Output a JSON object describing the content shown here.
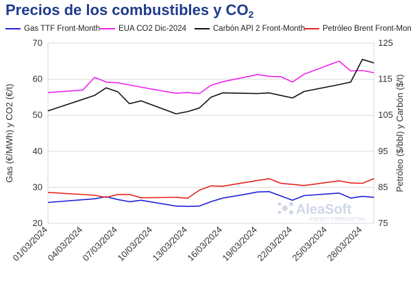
{
  "title_main": "Precios de los combustibles y CO",
  "title_sub": "2",
  "chart_data": {
    "type": "line",
    "xlabel": "",
    "ylabel_left": "Gas (€/MWh) y CO2 (€/t)",
    "ylabel_right": "Petróleo ($/bbl) y Carbón ($/t)",
    "ylim_left": [
      20,
      70
    ],
    "ylim_right": [
      75,
      125
    ],
    "yticks_left": [
      20,
      30,
      40,
      50,
      60,
      70
    ],
    "yticks_right": [
      75,
      85,
      95,
      105,
      115,
      125
    ],
    "x_range": [
      "2024-03-01",
      "2024-03-28"
    ],
    "x_ticks": [
      "01/03/2024",
      "04/03/2024",
      "07/03/2024",
      "10/03/2024",
      "13/03/2024",
      "16/03/2024",
      "19/03/2024",
      "22/03/2024",
      "25/03/2024",
      "28/03/2024"
    ],
    "grid": "horizontal",
    "legend": "top",
    "series": [
      {
        "name": "Gas TTF Front-Month",
        "axis": "left",
        "color": "#1f1fd6",
        "points": [
          [
            "2024-03-01",
            25.8
          ],
          [
            "2024-03-05",
            26.8
          ],
          [
            "2024-03-06",
            27.4
          ],
          [
            "2024-03-07",
            26.6
          ],
          [
            "2024-03-08",
            26.0
          ],
          [
            "2024-03-09",
            26.4
          ],
          [
            "2024-03-12",
            24.8
          ],
          [
            "2024-03-13",
            24.7
          ],
          [
            "2024-03-14",
            24.8
          ],
          [
            "2024-03-15",
            26.0
          ],
          [
            "2024-03-16",
            27.0
          ],
          [
            "2024-03-18",
            28.1
          ],
          [
            "2024-03-19",
            28.7
          ],
          [
            "2024-03-20",
            28.8
          ],
          [
            "2024-03-21",
            27.6
          ],
          [
            "2024-03-22",
            26.4
          ],
          [
            "2024-03-23",
            27.7
          ],
          [
            "2024-03-26",
            28.4
          ],
          [
            "2024-03-27",
            27.0
          ],
          [
            "2024-03-28",
            27.5
          ],
          [
            "2024-03-29",
            27.2
          ]
        ]
      },
      {
        "name": "EUA CO2 Dic-2024",
        "axis": "left",
        "color": "#ee22ee",
        "points": [
          [
            "2024-03-01",
            56.3
          ],
          [
            "2024-03-04",
            57.0
          ],
          [
            "2024-03-05",
            60.5
          ],
          [
            "2024-03-06",
            59.2
          ],
          [
            "2024-03-07",
            59.0
          ],
          [
            "2024-03-10",
            57.2
          ],
          [
            "2024-03-12",
            56.1
          ],
          [
            "2024-03-13",
            56.3
          ],
          [
            "2024-03-14",
            56.0
          ],
          [
            "2024-03-15",
            58.3
          ],
          [
            "2024-03-16",
            59.3
          ],
          [
            "2024-03-19",
            61.3
          ],
          [
            "2024-03-20",
            60.8
          ],
          [
            "2024-03-21",
            60.7
          ],
          [
            "2024-03-22",
            59.2
          ],
          [
            "2024-03-23",
            61.4
          ],
          [
            "2024-03-26",
            65.0
          ],
          [
            "2024-03-27",
            62.3
          ],
          [
            "2024-03-28",
            62.4
          ],
          [
            "2024-03-29",
            61.8
          ]
        ]
      },
      {
        "name": "Carbón API 2 Front-Month",
        "axis": "right",
        "color": "#111111",
        "points": [
          [
            "2024-03-01",
            106.2
          ],
          [
            "2024-03-05",
            110.5
          ],
          [
            "2024-03-06",
            112.6
          ],
          [
            "2024-03-07",
            111.5
          ],
          [
            "2024-03-08",
            108.2
          ],
          [
            "2024-03-09",
            109.0
          ],
          [
            "2024-03-12",
            105.4
          ],
          [
            "2024-03-13",
            106.0
          ],
          [
            "2024-03-14",
            107.0
          ],
          [
            "2024-03-15",
            110.0
          ],
          [
            "2024-03-16",
            111.2
          ],
          [
            "2024-03-19",
            111.0
          ],
          [
            "2024-03-20",
            111.2
          ],
          [
            "2024-03-21",
            110.5
          ],
          [
            "2024-03-22",
            109.8
          ],
          [
            "2024-03-23",
            111.6
          ],
          [
            "2024-03-26",
            113.5
          ],
          [
            "2024-03-27",
            114.2
          ],
          [
            "2024-03-28",
            120.5
          ],
          [
            "2024-03-29",
            119.5
          ]
        ]
      },
      {
        "name": "Petróleo Brent Front-Month",
        "axis": "right",
        "color": "#e8221c",
        "points": [
          [
            "2024-03-01",
            83.6
          ],
          [
            "2024-03-05",
            82.8
          ],
          [
            "2024-03-06",
            82.2
          ],
          [
            "2024-03-07",
            83.0
          ],
          [
            "2024-03-08",
            83.0
          ],
          [
            "2024-03-09",
            82.1
          ],
          [
            "2024-03-12",
            82.2
          ],
          [
            "2024-03-13",
            82.0
          ],
          [
            "2024-03-14",
            84.2
          ],
          [
            "2024-03-15",
            85.4
          ],
          [
            "2024-03-16",
            85.3
          ],
          [
            "2024-03-19",
            86.9
          ],
          [
            "2024-03-20",
            87.4
          ],
          [
            "2024-03-21",
            86.1
          ],
          [
            "2024-03-22",
            85.8
          ],
          [
            "2024-03-23",
            85.5
          ],
          [
            "2024-03-26",
            86.8
          ],
          [
            "2024-03-27",
            86.2
          ],
          [
            "2024-03-28",
            86.1
          ],
          [
            "2024-03-29",
            87.4
          ]
        ]
      }
    ]
  },
  "watermark": {
    "brand": "AleaSoft",
    "tagline": "ENERGY FORECASTING"
  }
}
